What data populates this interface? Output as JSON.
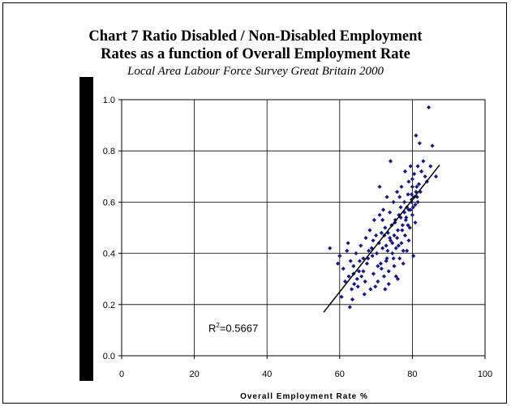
{
  "chart_data": {
    "type": "scatter",
    "title_line1": "Chart 7 Ratio Disabled / Non-Disabled Employment",
    "title_line2": "Rates as a function of Overall Employment Rate",
    "subtitle": "Local Area Labour Force Survey Great Britain 2000",
    "xlabel": "Overall Employment Rate %",
    "ylabel": "",
    "xlim": [
      0,
      100
    ],
    "ylim": [
      0.0,
      1.0
    ],
    "xticks": [
      0,
      20,
      40,
      60,
      80,
      100
    ],
    "yticks": [
      0.0,
      0.2,
      0.4,
      0.6,
      0.8,
      1.0
    ],
    "xtick_labels": [
      "0",
      "20",
      "40",
      "60",
      "80",
      "100"
    ],
    "ytick_labels": [
      "0.0",
      "0.2",
      "0.4",
      "0.6",
      "0.8",
      "1.0"
    ],
    "grid": true,
    "marker_color": "#1a1a80",
    "trendline": {
      "x": [
        55.6,
        87.5
      ],
      "y": [
        0.17,
        0.745
      ]
    },
    "r_squared_prefix": "R",
    "r_squared_sup": "2",
    "r_squared_value": "=0.5667",
    "points": [
      [
        57.3,
        0.42
      ],
      [
        59.5,
        0.36
      ],
      [
        60.0,
        0.39
      ],
      [
        60.5,
        0.23
      ],
      [
        61.0,
        0.34
      ],
      [
        61.5,
        0.29
      ],
      [
        62.0,
        0.41
      ],
      [
        62.3,
        0.44
      ],
      [
        62.8,
        0.19
      ],
      [
        62.5,
        0.31
      ],
      [
        63.0,
        0.37
      ],
      [
        63.3,
        0.26
      ],
      [
        63.8,
        0.35
      ],
      [
        64.0,
        0.28
      ],
      [
        64.5,
        0.4
      ],
      [
        65.0,
        0.27
      ],
      [
        65.3,
        0.33
      ],
      [
        65.8,
        0.43
      ],
      [
        66.0,
        0.31
      ],
      [
        66.5,
        0.38
      ],
      [
        67.0,
        0.29
      ],
      [
        67.2,
        0.46
      ],
      [
        67.5,
        0.36
      ],
      [
        68.0,
        0.41
      ],
      [
        68.3,
        0.49
      ],
      [
        68.5,
        0.26
      ],
      [
        69.0,
        0.39
      ],
      [
        69.3,
        0.32
      ],
      [
        69.5,
        0.53
      ],
      [
        70.0,
        0.47
      ],
      [
        70.2,
        0.4
      ],
      [
        70.5,
        0.29
      ],
      [
        70.8,
        0.44
      ],
      [
        71.0,
        0.55
      ],
      [
        71.0,
        0.66
      ],
      [
        71.3,
        0.36
      ],
      [
        71.5,
        0.48
      ],
      [
        71.8,
        0.42
      ],
      [
        72.0,
        0.57
      ],
      [
        72.2,
        0.31
      ],
      [
        72.5,
        0.5
      ],
      [
        72.5,
        0.26
      ],
      [
        72.8,
        0.43
      ],
      [
        73.0,
        0.62
      ],
      [
        73.0,
        0.38
      ],
      [
        73.3,
        0.48
      ],
      [
        73.5,
        0.33
      ],
      [
        73.8,
        0.56
      ],
      [
        74.0,
        0.45
      ],
      [
        74.0,
        0.76
      ],
      [
        74.3,
        0.51
      ],
      [
        74.5,
        0.4
      ],
      [
        74.8,
        0.6
      ],
      [
        75.0,
        0.35
      ],
      [
        75.0,
        0.47
      ],
      [
        75.3,
        0.53
      ],
      [
        75.5,
        0.42
      ],
      [
        75.8,
        0.64
      ],
      [
        76.0,
        0.3
      ],
      [
        76.0,
        0.49
      ],
      [
        76.3,
        0.55
      ],
      [
        76.5,
        0.38
      ],
      [
        76.8,
        0.58
      ],
      [
        77.0,
        0.44
      ],
      [
        77.0,
        0.66
      ],
      [
        77.3,
        0.51
      ],
      [
        77.5,
        0.36
      ],
      [
        77.8,
        0.6
      ],
      [
        78.0,
        0.47
      ],
      [
        78.0,
        0.72
      ],
      [
        78.3,
        0.54
      ],
      [
        78.5,
        0.41
      ],
      [
        78.8,
        0.63
      ],
      [
        79.0,
        0.57
      ],
      [
        79.0,
        0.68
      ],
      [
        79.3,
        0.5
      ],
      [
        79.5,
        0.74
      ],
      [
        79.8,
        0.61
      ],
      [
        80.0,
        0.55
      ],
      [
        80.0,
        0.66
      ],
      [
        80.3,
        0.39
      ],
      [
        80.5,
        0.71
      ],
      [
        80.8,
        0.59
      ],
      [
        81.0,
        0.86
      ],
      [
        81.0,
        0.64
      ],
      [
        81.3,
        0.62
      ],
      [
        81.5,
        0.74
      ],
      [
        81.8,
        0.67
      ],
      [
        82.0,
        0.83
      ],
      [
        82.5,
        0.72
      ],
      [
        83.0,
        0.76
      ],
      [
        83.5,
        0.7
      ],
      [
        84.0,
        0.68
      ],
      [
        84.5,
        0.97
      ],
      [
        85.0,
        0.74
      ],
      [
        85.5,
        0.82
      ],
      [
        86.5,
        0.7
      ],
      [
        63.5,
        0.22
      ],
      [
        66.8,
        0.24
      ],
      [
        69.8,
        0.27
      ],
      [
        71.5,
        0.34
      ],
      [
        73.5,
        0.28
      ],
      [
        75.5,
        0.31
      ],
      [
        77.5,
        0.41
      ],
      [
        79.0,
        0.45
      ],
      [
        80.8,
        0.52
      ],
      [
        76.8,
        0.54
      ],
      [
        74.5,
        0.44
      ],
      [
        72.8,
        0.37
      ],
      [
        70.5,
        0.35
      ],
      [
        68.8,
        0.42
      ],
      [
        66.5,
        0.33
      ],
      [
        64.8,
        0.3
      ],
      [
        78.5,
        0.58
      ],
      [
        79.8,
        0.6
      ],
      [
        80.5,
        0.62
      ],
      [
        81.5,
        0.6
      ],
      [
        77.2,
        0.49
      ],
      [
        75.8,
        0.46
      ],
      [
        73.2,
        0.41
      ],
      [
        74.8,
        0.38
      ],
      [
        76.2,
        0.43
      ],
      [
        78.2,
        0.53
      ],
      [
        79.5,
        0.57
      ],
      [
        80.2,
        0.58
      ],
      [
        81.2,
        0.66
      ],
      [
        82.2,
        0.64
      ],
      [
        71.8,
        0.53
      ],
      [
        72.3,
        0.47
      ],
      [
        69.2,
        0.45
      ],
      [
        67.8,
        0.38
      ],
      [
        65.5,
        0.37
      ],
      [
        63.8,
        0.32
      ],
      [
        79.8,
        0.63
      ],
      [
        78.8,
        0.51
      ],
      [
        75.2,
        0.52
      ],
      [
        73.8,
        0.46
      ],
      [
        76.5,
        0.62
      ],
      [
        77.8,
        0.56
      ],
      [
        80.0,
        0.69
      ]
    ]
  }
}
